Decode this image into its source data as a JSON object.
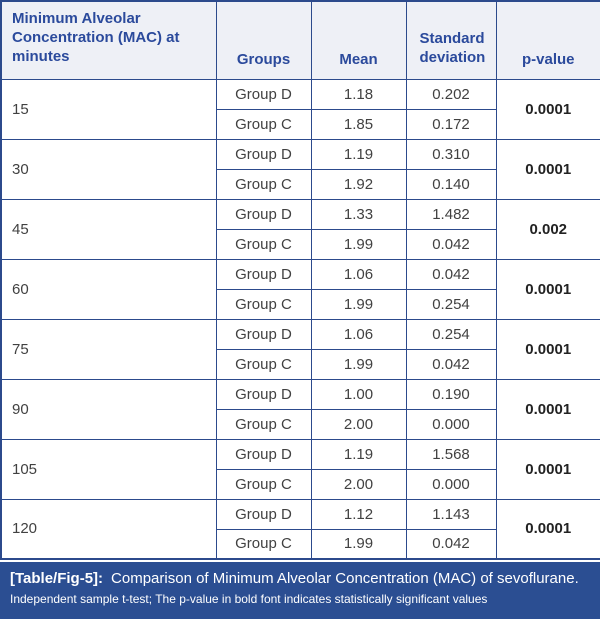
{
  "header": {
    "minutes": "Minimum Alveolar Concentration (MAC) at minutes",
    "groups": "Groups",
    "mean": "Mean",
    "sd": "Standard deviation",
    "p": "p-value"
  },
  "rows": [
    {
      "minutes": "15",
      "p": "0.0001",
      "groups": [
        {
          "group": "Group D",
          "mean": "1.18",
          "sd": "0.202"
        },
        {
          "group": "Group C",
          "mean": "1.85",
          "sd": "0.172"
        }
      ]
    },
    {
      "minutes": "30",
      "p": "0.0001",
      "groups": [
        {
          "group": "Group D",
          "mean": "1.19",
          "sd": "0.310"
        },
        {
          "group": "Group C",
          "mean": "1.92",
          "sd": "0.140"
        }
      ]
    },
    {
      "minutes": "45",
      "p": "0.002",
      "groups": [
        {
          "group": "Group D",
          "mean": "1.33",
          "sd": "1.482"
        },
        {
          "group": "Group C",
          "mean": "1.99",
          "sd": "0.042"
        }
      ]
    },
    {
      "minutes": "60",
      "p": "0.0001",
      "groups": [
        {
          "group": "Group D",
          "mean": "1.06",
          "sd": "0.042"
        },
        {
          "group": "Group C",
          "mean": "1.99",
          "sd": "0.254"
        }
      ]
    },
    {
      "minutes": "75",
      "p": "0.0001",
      "groups": [
        {
          "group": "Group D",
          "mean": "1.06",
          "sd": "0.254"
        },
        {
          "group": "Group C",
          "mean": "1.99",
          "sd": "0.042"
        }
      ]
    },
    {
      "minutes": "90",
      "p": "0.0001",
      "groups": [
        {
          "group": "Group D",
          "mean": "1.00",
          "sd": "0.190"
        },
        {
          "group": "Group C",
          "mean": "2.00",
          "sd": "0.000"
        }
      ]
    },
    {
      "minutes": "105",
      "p": "0.0001",
      "groups": [
        {
          "group": "Group D",
          "mean": "1.19",
          "sd": "1.568"
        },
        {
          "group": "Group C",
          "mean": "2.00",
          "sd": "0.000"
        }
      ]
    },
    {
      "minutes": "120",
      "p": "0.0001",
      "groups": [
        {
          "group": "Group D",
          "mean": "1.12",
          "sd": "1.143"
        },
        {
          "group": "Group C",
          "mean": "1.99",
          "sd": "0.042"
        }
      ]
    }
  ],
  "caption": {
    "label": "[Table/Fig-5]:",
    "title": "Comparison of Minimum Alveolar Concentration (MAC) of sevoflurane.",
    "note": "Independent sample t-test; The p-value in bold font indicates statistically significant values"
  },
  "colors": {
    "border": "#2c4a8c",
    "header_bg": "#eef0f6",
    "header_text": "#2b4a9c",
    "body_text": "#414141",
    "caption_bg": "#2b4e92",
    "caption_text": "#ffffff"
  }
}
